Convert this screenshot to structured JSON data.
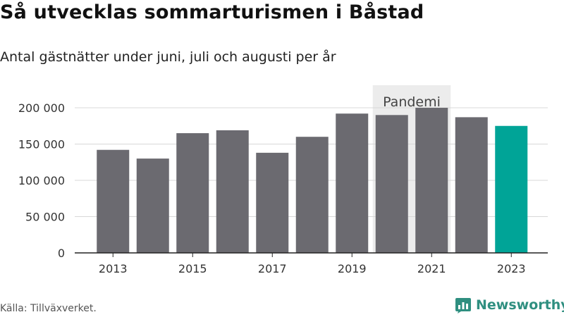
{
  "header": {
    "title": "Så utvecklas sommarturismen i Båstad",
    "subtitle": "Antal gästnätter under juni, juli och augusti per år"
  },
  "footer": {
    "source": "Källa: Tillväxverket.",
    "brand": "Newsworthy",
    "brand_icon": "bar-chart-logo-icon"
  },
  "colors": {
    "bar": "#6b6a70",
    "highlight": "#00a497",
    "band": "#ececec",
    "brand": "#2f8f80"
  },
  "chart_data": {
    "type": "bar",
    "title": "Så utvecklas sommarturismen i Båstad",
    "subtitle": "Antal gästnätter under juni, juli och augusti per år",
    "categories": [
      "2013",
      "2014",
      "2015",
      "2016",
      "2017",
      "2018",
      "2019",
      "2020",
      "2021",
      "2022",
      "2023"
    ],
    "values": [
      142000,
      130000,
      165000,
      169000,
      138000,
      160000,
      192000,
      190000,
      200000,
      187000,
      175000
    ],
    "highlight": "2023",
    "xticks": [
      "2013",
      "2015",
      "2017",
      "2019",
      "2021",
      "2023"
    ],
    "yticks": [
      0,
      50000,
      100000,
      150000,
      200000
    ],
    "ytick_labels": [
      "0",
      "50 000",
      "100 000",
      "150 000",
      "200 000"
    ],
    "ylim": [
      0,
      200000
    ],
    "xlabel": "",
    "ylabel": "",
    "grid": true,
    "legend": "none",
    "annotation": {
      "label": "Pandemi",
      "from": "2020",
      "to": "2021"
    }
  }
}
